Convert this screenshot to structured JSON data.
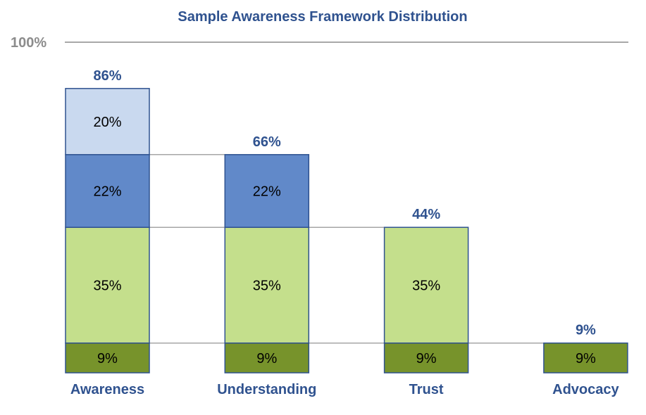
{
  "chart_data": {
    "type": "bar",
    "stacked": true,
    "title": "Sample Awareness Framework Distribution",
    "ylim": [
      0,
      100
    ],
    "reference_line": {
      "value": 100,
      "label": "100%"
    },
    "categories": [
      "Awareness",
      "Understanding",
      "Trust",
      "Advocacy"
    ],
    "series": [
      {
        "values": [
          9,
          9,
          9,
          9
        ],
        "color": "#77932B"
      },
      {
        "values": [
          35,
          35,
          35,
          0
        ],
        "color": "#C4DF8C"
      },
      {
        "values": [
          22,
          22,
          0,
          0
        ],
        "color": "#6189C9"
      },
      {
        "values": [
          20,
          0,
          0,
          0
        ],
        "color": "#C9D9EF"
      }
    ],
    "totals": [
      86,
      66,
      44,
      9
    ],
    "value_format": "percent",
    "border_color": "#2F528F",
    "label_color": "#2F528F",
    "connector_color": "#A6A6A6",
    "grid": false,
    "legend": "none"
  }
}
